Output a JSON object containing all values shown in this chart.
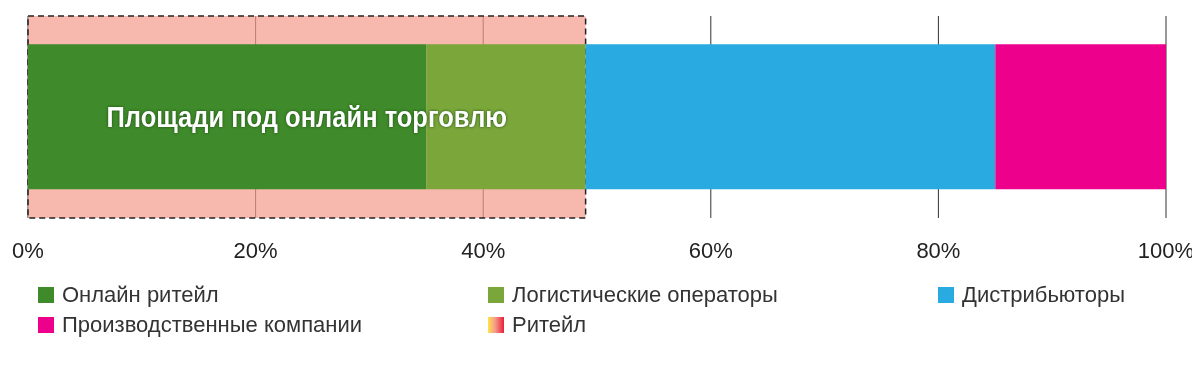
{
  "chart_data": {
    "type": "bar",
    "orientation": "horizontal",
    "stacked": true,
    "categories": [
      null
    ],
    "series": [
      {
        "name": "Онлайн ритейл",
        "color": "#3f8a2a",
        "values": [
          35
        ]
      },
      {
        "name": "Логистические операторы",
        "color": "#7aa63a",
        "values": [
          14
        ]
      },
      {
        "name": "Дистрибьюторы",
        "color": "#29abe2",
        "values": [
          36
        ]
      },
      {
        "name": "Производственные компании",
        "color": "#ec008c",
        "values": [
          15
        ]
      }
    ],
    "bands": [
      {
        "axis": "x",
        "from": 0,
        "to": 49,
        "label": "Ритейл",
        "color": "#f49a8a"
      }
    ],
    "annotations": [
      "Площади под онлайн торговлю"
    ],
    "xlim": [
      0,
      100
    ],
    "xticks": [
      {
        "value": 0,
        "label": "0%"
      },
      {
        "value": 20,
        "label": "20%"
      },
      {
        "value": 40,
        "label": "40%"
      },
      {
        "value": 60,
        "label": "60%"
      },
      {
        "value": 80,
        "label": "80%"
      },
      {
        "value": 100,
        "label": "100%"
      }
    ],
    "grid": "x",
    "legend": "bottom"
  }
}
